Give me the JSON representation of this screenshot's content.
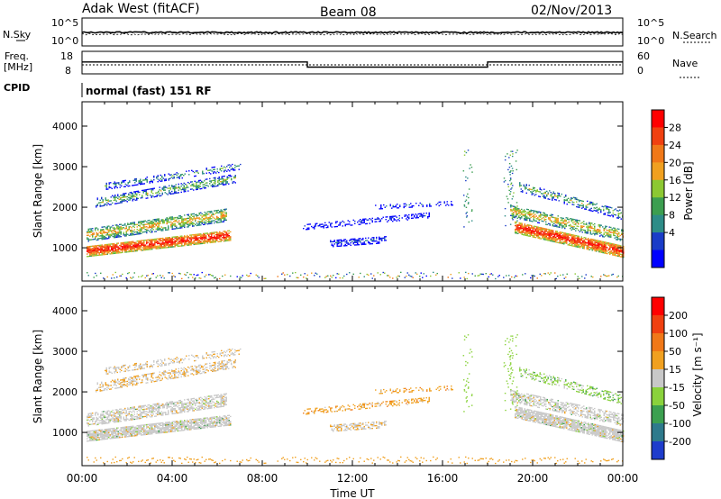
{
  "header": {
    "station": "Adak West (fitACF)",
    "beam": "Beam 08",
    "date": "02/Nov/2013"
  },
  "panels": {
    "nsky_label": "N.Sky",
    "nsearch_label": "N.Search",
    "nsky_ticks": [
      "10^5",
      "10^0"
    ],
    "freq_label_1": "Freq.",
    "freq_label_2": "[MHz]",
    "freq_ticks": [
      "18",
      "8"
    ],
    "nave_label": "Nave",
    "nave_ticks": [
      "60",
      "0"
    ],
    "cpid_label": "CPID",
    "cpid_text": "normal (fast) 151 RF"
  },
  "colorbars": {
    "power": {
      "label": "Power [dB]",
      "ticks": [
        "28",
        "24",
        "20",
        "16",
        "12",
        "8",
        "4"
      ],
      "colors": [
        "#0000ff",
        "#1a3cc8",
        "#2d8c87",
        "#3c9e50",
        "#8cc832",
        "#f0a020",
        "#f07818",
        "#f04010",
        "#ff0000"
      ]
    },
    "velocity": {
      "label": "Velocity [m s⁻¹]",
      "ticks": [
        "200",
        "100",
        "50",
        "15",
        "-15",
        "-50",
        "-100",
        "-200"
      ],
      "colors": [
        "#1e3ccc",
        "#2e7a8c",
        "#3ca050",
        "#8ad23c",
        "#c8c8c8",
        "#f0a020",
        "#f07818",
        "#f04010",
        "#ff0000"
      ]
    }
  },
  "chart_data": [
    {
      "type": "heatmap",
      "name": "power",
      "title": "",
      "ylabel": "Slant Range [km]",
      "xlabel": "Time UT",
      "x_ticks": [
        "00:00",
        "04:00",
        "08:00",
        "12:00",
        "16:00",
        "20:00",
        "00:00"
      ],
      "y_ticks": [
        "1000",
        "2000",
        "3000",
        "4000"
      ],
      "xlim_hours": [
        0,
        24
      ],
      "ylim_km": [
        180,
        4600
      ]
    },
    {
      "type": "heatmap",
      "name": "velocity",
      "title": "",
      "ylabel": "Slant Range [km]",
      "xlabel": "Time UT",
      "x_ticks": [
        "00:00",
        "04:00",
        "08:00",
        "12:00",
        "16:00",
        "20:00",
        "00:00"
      ],
      "y_ticks": [
        "1000",
        "2000",
        "3000",
        "4000"
      ],
      "xlim_hours": [
        0,
        24
      ],
      "ylim_km": [
        180,
        4600
      ]
    },
    {
      "type": "line",
      "name": "frequency",
      "ylabel": "Freq. [MHz]",
      "ylim": [
        8,
        18
      ],
      "x": [
        0.0,
        10.0,
        10.0,
        18.0,
        18.0,
        24.0
      ],
      "values": [
        13.3,
        13.3,
        11.0,
        11.0,
        13.3,
        13.3
      ]
    }
  ],
  "axes": {
    "time_label": "Time UT"
  }
}
